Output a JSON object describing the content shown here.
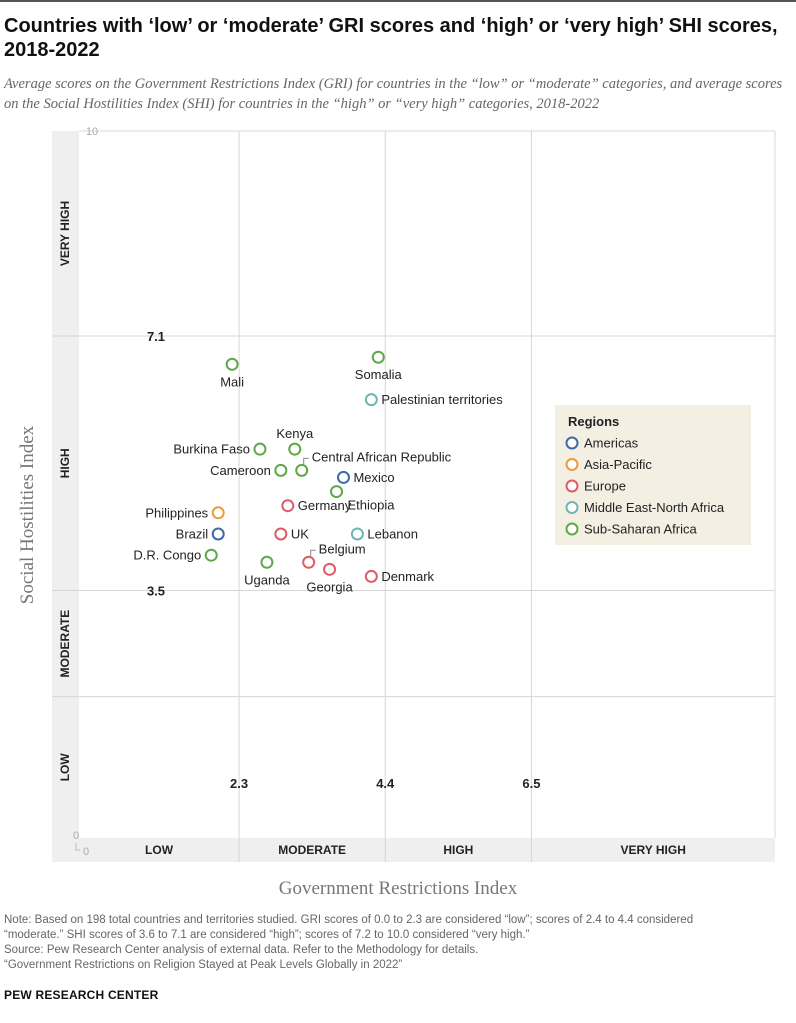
{
  "title": "Countries with ‘low’ or ‘moderate’ GRI scores and ‘high’ or ‘very high’ SHI scores, 2018-2022",
  "subtitle": "Average scores on the Government Restrictions Index (GRI) for countries in the “low” or “moderate” categories, and average scores on the Social Hostilities Index (SHI) for countries in the “high” or “very high” categories, 2018-2022",
  "chart_data": {
    "type": "scatter",
    "xlabel": "Government Restrictions Index",
    "ylabel": "Social Hostilities Index",
    "xlim": [
      0,
      10
    ],
    "ylim": [
      0,
      10
    ],
    "x_origin_label": "0",
    "y_top_label": "10",
    "y_origin_label": "0",
    "x_thresholds": [
      {
        "value": 2.3,
        "label": "2.3"
      },
      {
        "value": 4.4,
        "label": "4.4"
      },
      {
        "value": 6.5,
        "label": "6.5"
      }
    ],
    "y_thresholds": [
      {
        "value": 7.1,
        "label": "7.1"
      },
      {
        "value": 3.5,
        "label": "3.5"
      }
    ],
    "y_grid_extra": [
      2.0
    ],
    "x_categories": [
      {
        "label": "LOW",
        "from": 0,
        "to": 2.3
      },
      {
        "label": "MODERATE",
        "from": 2.3,
        "to": 4.4
      },
      {
        "label": "HIGH",
        "from": 4.4,
        "to": 6.5
      },
      {
        "label": "VERY HIGH",
        "from": 6.5,
        "to": 10
      }
    ],
    "y_categories": [
      {
        "label": "LOW",
        "from": 0,
        "to": 2.0
      },
      {
        "label": "MODERATE",
        "from": 2.0,
        "to": 3.5
      },
      {
        "label": "HIGH",
        "from": 3.5,
        "to": 7.1
      },
      {
        "label": "VERY HIGH",
        "from": 7.1,
        "to": 10
      }
    ],
    "legend": {
      "title": "Regions",
      "position": "right",
      "entries": [
        {
          "name": "Americas",
          "color": "#3e6aa8"
        },
        {
          "name": "Asia-Pacific",
          "color": "#ef9a3a"
        },
        {
          "name": "Europe",
          "color": "#e05a66"
        },
        {
          "name": "Middle East-North Africa",
          "color": "#6fb6b0"
        },
        {
          "name": "Sub-Saharan Africa",
          "color": "#5ea847"
        }
      ]
    },
    "points": [
      {
        "label": "Mali",
        "x": 2.2,
        "y": 6.7,
        "region": "Sub-Saharan Africa",
        "label_pos": "below"
      },
      {
        "label": "Somalia",
        "x": 4.3,
        "y": 6.8,
        "region": "Sub-Saharan Africa",
        "label_pos": "below"
      },
      {
        "label": "Palestinian territories",
        "x": 4.2,
        "y": 6.2,
        "region": "Middle East-North Africa",
        "label_pos": "right"
      },
      {
        "label": "Kenya",
        "x": 3.1,
        "y": 5.5,
        "region": "Sub-Saharan Africa",
        "label_pos": "above"
      },
      {
        "label": "Burkina Faso",
        "x": 2.6,
        "y": 5.5,
        "region": "Sub-Saharan Africa",
        "label_pos": "left"
      },
      {
        "label": "Central African Republic",
        "x": 3.2,
        "y": 5.2,
        "region": "Sub-Saharan Africa",
        "label_pos": "upper-right"
      },
      {
        "label": "Cameroon",
        "x": 2.9,
        "y": 5.2,
        "region": "Sub-Saharan Africa",
        "label_pos": "left"
      },
      {
        "label": "Mexico",
        "x": 3.8,
        "y": 5.1,
        "region": "Americas",
        "label_pos": "right"
      },
      {
        "label": "Ethiopia",
        "x": 3.7,
        "y": 4.9,
        "region": "Sub-Saharan Africa",
        "label_pos": "lower-right"
      },
      {
        "label": "Germany",
        "x": 3.0,
        "y": 4.7,
        "region": "Europe",
        "label_pos": "right"
      },
      {
        "label": "Philippines",
        "x": 2.0,
        "y": 4.6,
        "region": "Asia-Pacific",
        "label_pos": "left"
      },
      {
        "label": "Brazil",
        "x": 2.0,
        "y": 4.3,
        "region": "Americas",
        "label_pos": "left"
      },
      {
        "label": "UK",
        "x": 2.9,
        "y": 4.3,
        "region": "Europe",
        "label_pos": "right"
      },
      {
        "label": "Lebanon",
        "x": 4.0,
        "y": 4.3,
        "region": "Middle East-North Africa",
        "label_pos": "right"
      },
      {
        "label": "D.R. Congo",
        "x": 1.9,
        "y": 4.0,
        "region": "Sub-Saharan Africa",
        "label_pos": "left"
      },
      {
        "label": "Belgium",
        "x": 3.3,
        "y": 3.9,
        "region": "Europe",
        "label_pos": "upper-right"
      },
      {
        "label": "Uganda",
        "x": 2.7,
        "y": 3.9,
        "region": "Sub-Saharan Africa",
        "label_pos": "below"
      },
      {
        "label": "Georgia",
        "x": 3.6,
        "y": 3.8,
        "region": "Europe",
        "label_pos": "below"
      },
      {
        "label": "Denmark",
        "x": 4.2,
        "y": 3.7,
        "region": "Europe",
        "label_pos": "right"
      }
    ]
  },
  "notes": {
    "note_line1": "Note: Based on 198 total countries and territories studied. GRI scores of 0.0 to 2.3 are considered “low”; scores of 2.4 to 4.4 considered",
    "note_line2": "“moderate.” SHI scores of 3.6 to 7.1 are considered “high”; scores of 7.2 to 10.0 considered “very high.”",
    "source": "Source: Pew Research Center analysis of external data. Refer to the Methodology for details.",
    "report": "“Government Restrictions on Religion Stayed at Peak Levels Globally in 2022”"
  },
  "footer": "PEW RESEARCH CENTER"
}
